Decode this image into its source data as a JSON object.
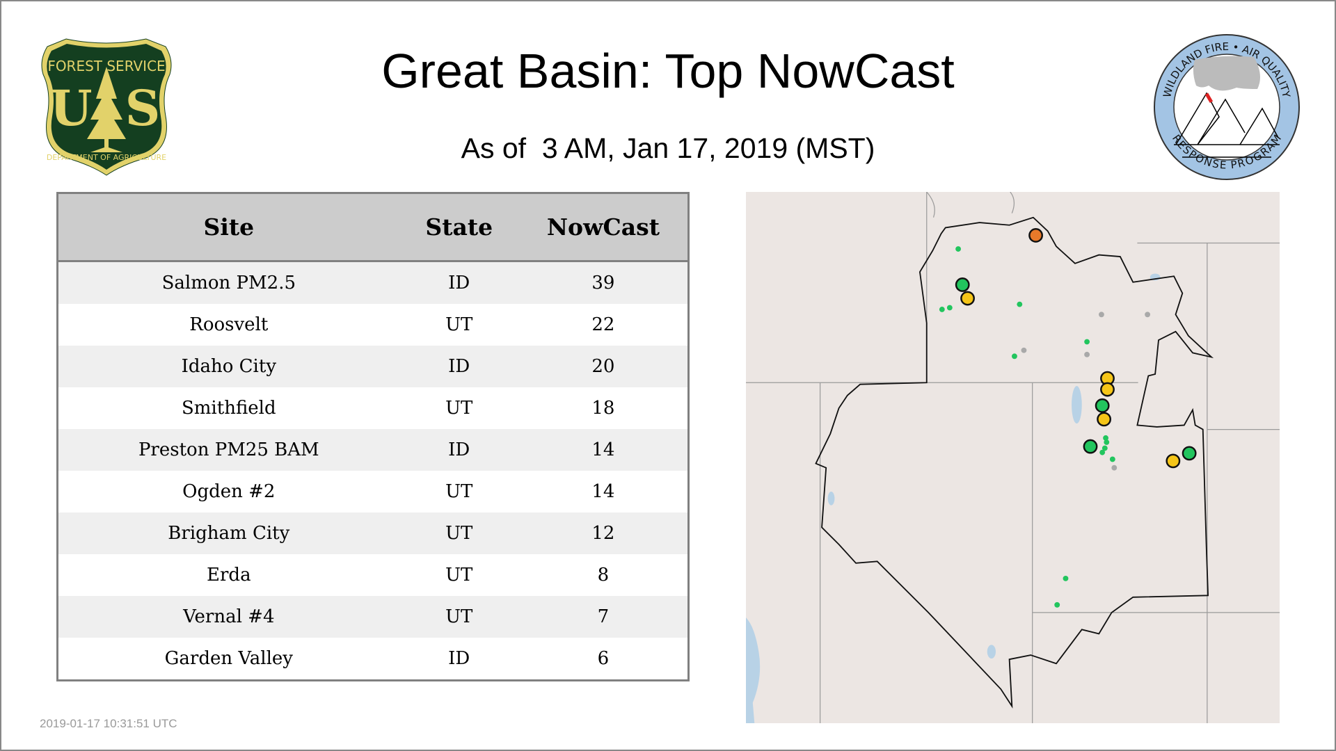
{
  "header": {
    "title": "Great Basin: Top NowCast",
    "subtitle": "As of  3 AM, Jan 17, 2019 (MST)"
  },
  "logos": {
    "left": {
      "name": "forest-service-shield",
      "text_top": "FOREST SERVICE",
      "letters": "US",
      "text_bottom": "DEPARTMENT OF AGRICULTURE"
    },
    "right": {
      "name": "wildland-fire-air-quality-seal",
      "text_top": "WILDLAND FIRE • AIR QUALITY",
      "text_bottom": "RESPONSE PROGRAM"
    }
  },
  "table": {
    "columns": [
      "Site",
      "State",
      "NowCast"
    ],
    "rows": [
      [
        "Salmon PM2.5",
        "ID",
        "39"
      ],
      [
        "Roosvelt",
        "UT",
        "22"
      ],
      [
        "Idaho City",
        "ID",
        "20"
      ],
      [
        "Smithfield",
        "UT",
        "18"
      ],
      [
        "Preston PM25 BAM",
        "ID",
        "14"
      ],
      [
        "Ogden #2",
        "UT",
        "14"
      ],
      [
        "Brigham City",
        "UT",
        "12"
      ],
      [
        "Erda",
        "UT",
        "8"
      ],
      [
        "Vernal #4",
        "UT",
        "7"
      ],
      [
        "Garden Valley",
        "ID",
        "6"
      ]
    ]
  },
  "map": {
    "colors": {
      "good": "#22c55e",
      "moderate": "#f5c518",
      "usg": "#e8792a",
      "no_data": "#a9a9a9",
      "background": "#ece6e3",
      "water": "#b8d2e6"
    }
  },
  "footer": {
    "timestamp": "2019-01-17 10:31:51 UTC"
  }
}
